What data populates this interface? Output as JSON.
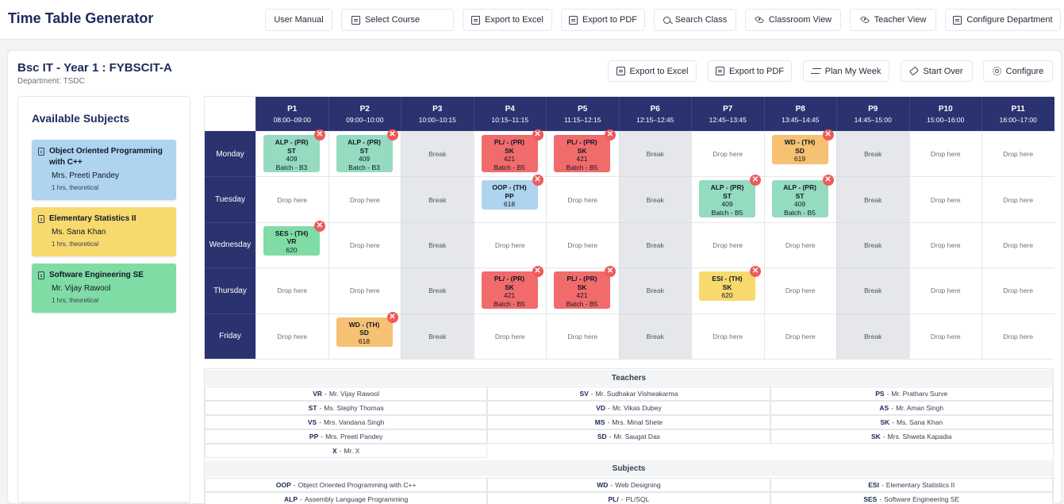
{
  "app_title": "Time Table Generator",
  "toolbar": {
    "user_manual": "User Manual",
    "select_course": "Select Course",
    "export_excel": "Export to Excel",
    "export_pdf": "Export to PDF",
    "search_class": "Search Class",
    "classroom_view": "Classroom View",
    "teacher_view": "Teacher View",
    "configure_department": "Configure Department"
  },
  "course": {
    "title": "Bsc IT - Year 1 : FYBSCIT-A",
    "department": "Department: TSDC"
  },
  "actions": {
    "export_excel": "Export to Excel",
    "export_pdf": "Export to PDF",
    "plan_week": "Plan My Week",
    "start_over": "Start Over",
    "configure": "Configure"
  },
  "subjects_panel": {
    "title": "Available Subjects",
    "items": [
      {
        "name": "Object Oriented Programming with C++",
        "teacher": "Mrs. Preeti Pandey",
        "meta": "1 hrs, theoretical",
        "color": "#aed4ef"
      },
      {
        "name": "Elementary Statistics II",
        "teacher": "Ms. Sana Khan",
        "meta": "1 hrs, theoretical",
        "color": "#f7d96e"
      },
      {
        "name": "Software Engineering SE",
        "teacher": "Mr. Vijay Rawool",
        "meta": "1 hrs, theoretical",
        "color": "#7fdca4"
      }
    ]
  },
  "timetable": {
    "periods": [
      {
        "label": "P1",
        "time": "08:00–09:00"
      },
      {
        "label": "P2",
        "time": "09:00–10:00"
      },
      {
        "label": "P3",
        "time": "10:00–10:15"
      },
      {
        "label": "P4",
        "time": "10:15–11:15"
      },
      {
        "label": "P5",
        "time": "11:15–12:15"
      },
      {
        "label": "P6",
        "time": "12:15–12:45"
      },
      {
        "label": "P7",
        "time": "12:45–13:45"
      },
      {
        "label": "P8",
        "time": "13:45–14:45"
      },
      {
        "label": "P9",
        "time": "14:45–15:00"
      },
      {
        "label": "P10",
        "time": "15:00–16:00"
      },
      {
        "label": "P11",
        "time": "16:00–17:00"
      }
    ],
    "break_periods": [
      2,
      5,
      8
    ],
    "break_label": "Break",
    "empty_label": "Drop here",
    "remove_symbol": "✕",
    "days": [
      "Monday",
      "Tuesday",
      "Wednesday",
      "Thursday",
      "Friday"
    ],
    "entries": [
      {
        "day": 0,
        "period": 0,
        "title": "ALP - (PR)",
        "teacher": "ST",
        "room": "409",
        "batch": "Batch - B3",
        "color": "#95dbbf"
      },
      {
        "day": 0,
        "period": 1,
        "title": "ALP - (PR)",
        "teacher": "ST",
        "room": "409",
        "batch": "Batch - B3",
        "color": "#95dbbf"
      },
      {
        "day": 0,
        "period": 3,
        "title": "PL/ - (PR)",
        "teacher": "SK",
        "room": "421",
        "batch": "Batch - B5",
        "color": "#f26b6b"
      },
      {
        "day": 0,
        "period": 4,
        "title": "PL/ - (PR)",
        "teacher": "SK",
        "room": "421",
        "batch": "Batch - B5",
        "color": "#f26b6b"
      },
      {
        "day": 0,
        "period": 7,
        "title": "WD - (TH)",
        "teacher": "SD",
        "room": "619",
        "batch": "",
        "color": "#f6c172"
      },
      {
        "day": 1,
        "period": 3,
        "title": "OOP - (TH)",
        "teacher": "PP",
        "room": "618",
        "batch": "",
        "color": "#aed4ef"
      },
      {
        "day": 1,
        "period": 6,
        "title": "ALP - (PR)",
        "teacher": "ST",
        "room": "409",
        "batch": "Batch - B5",
        "color": "#95dbbf"
      },
      {
        "day": 1,
        "period": 7,
        "title": "ALP - (PR)",
        "teacher": "ST",
        "room": "409",
        "batch": "Batch - B5",
        "color": "#95dbbf"
      },
      {
        "day": 2,
        "period": 0,
        "title": "SES - (TH)",
        "teacher": "VR",
        "room": "620",
        "batch": "",
        "color": "#7fdca4"
      },
      {
        "day": 3,
        "period": 3,
        "title": "PL/ - (PR)",
        "teacher": "SK",
        "room": "421",
        "batch": "Batch - B5",
        "color": "#f26b6b"
      },
      {
        "day": 3,
        "period": 4,
        "title": "PL/ - (PR)",
        "teacher": "SK",
        "room": "421",
        "batch": "Batch - B5",
        "color": "#f26b6b"
      },
      {
        "day": 3,
        "period": 6,
        "title": "ESI - (TH)",
        "teacher": "SK",
        "room": "620",
        "batch": "",
        "color": "#f7d96e"
      },
      {
        "day": 4,
        "period": 1,
        "title": "WD - (TH)",
        "teacher": "SD",
        "room": "618",
        "batch": "",
        "color": "#f6c172"
      }
    ]
  },
  "legend": {
    "teachers_title": "Teachers",
    "teachers": [
      {
        "abbr": "VR",
        "name": "Mr. Vijay Rawool"
      },
      {
        "abbr": "SV",
        "name": "Mr. Sudhakar Vishwakarma"
      },
      {
        "abbr": "PS",
        "name": "Mr. Pratharv Surve"
      },
      {
        "abbr": "ST",
        "name": "Ms. Stephy Thomas"
      },
      {
        "abbr": "VD",
        "name": "Mr. Vikas Dubey"
      },
      {
        "abbr": "AS",
        "name": "Mr. Aman Singh"
      },
      {
        "abbr": "VS",
        "name": "Mrs. Vandana Singh"
      },
      {
        "abbr": "MS",
        "name": "Mrs. Minal Shete"
      },
      {
        "abbr": "SK",
        "name": "Ms. Sana Khan"
      },
      {
        "abbr": "PP",
        "name": "Mrs. Preeti Pandey"
      },
      {
        "abbr": "SD",
        "name": "Mr. Saugat Das"
      },
      {
        "abbr": "SK",
        "name": "Mrs. Shweta Kapadia"
      },
      {
        "abbr": "X",
        "name": "Mr. X"
      }
    ],
    "subjects_title": "Subjects",
    "subjects": [
      {
        "abbr": "OOP",
        "name": "Object Oriented Programming with C++"
      },
      {
        "abbr": "WD",
        "name": "Web Designing"
      },
      {
        "abbr": "ESI",
        "name": "Elementary Statistics II"
      },
      {
        "abbr": "ALP",
        "name": "Assembly Language Programming"
      },
      {
        "abbr": "PL/",
        "name": "PL/SQL"
      },
      {
        "abbr": "SES",
        "name": "Software Engineering SE"
      }
    ],
    "separator": " - "
  }
}
